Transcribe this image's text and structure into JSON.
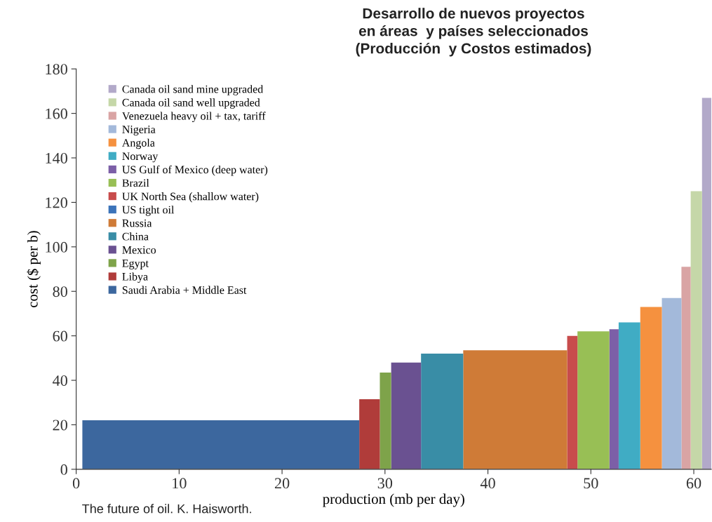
{
  "chart_data": {
    "type": "area",
    "title": "Desarrollo de nuevos proyectos\nen áreas  y países seleccionados\n(Producción  y Costos estimados)",
    "xlabel": "production (mb per day)",
    "ylabel": "cost ($ per b)",
    "xlim": [
      0,
      61.7
    ],
    "xticks": [
      0,
      10,
      20,
      30,
      40,
      50,
      60
    ],
    "ylim": [
      0,
      180
    ],
    "yticks": [
      0,
      20,
      40,
      60,
      80,
      100,
      120,
      140,
      160,
      180
    ],
    "grid": false,
    "legend": "top left",
    "annotations": [
      "The future of oil. K. Haisworth."
    ],
    "series": [
      {
        "name": "Canada oil sand mine upgraded",
        "color": "#b2a9c9",
        "x": [
          60.8,
          61.7
        ],
        "values": [
          167,
          167
        ]
      },
      {
        "name": "Canada oil sand well upgraded",
        "color": "#c5d7a8",
        "x": [
          59.7,
          60.8
        ],
        "values": [
          125,
          125
        ]
      },
      {
        "name": "Venezuela heavy oil + tax, tariff",
        "color": "#d9a4a4",
        "x": [
          58.8,
          59.7
        ],
        "values": [
          91,
          91
        ]
      },
      {
        "name": "Nigeria",
        "color": "#a3b9da",
        "x": [
          56.9,
          58.8
        ],
        "values": [
          77,
          77
        ]
      },
      {
        "name": "Angola",
        "color": "#f5913f",
        "x": [
          54.8,
          56.9
        ],
        "values": [
          73,
          73
        ]
      },
      {
        "name": "Norway",
        "color": "#40acc4",
        "x": [
          52.7,
          54.8
        ],
        "values": [
          66,
          66
        ]
      },
      {
        "name": "US Gulf of Mexico (deep water)",
        "color": "#7c5fa7",
        "x": [
          51.8,
          52.7
        ],
        "values": [
          63,
          63
        ]
      },
      {
        "name": "Brazil",
        "color": "#98bf55",
        "x": [
          48.7,
          51.8
        ],
        "values": [
          62,
          62
        ]
      },
      {
        "name": "UK North Sea (shallow water)",
        "color": "#c84c4c",
        "x": [
          47.7,
          48.7
        ],
        "values": [
          60,
          60
        ]
      },
      {
        "name": "US tight oil",
        "color": "#3b73b9"
      },
      {
        "name": "Russia",
        "color": "#cf7b37",
        "x": [
          37.6,
          47.7
        ],
        "values": [
          53.5,
          53.5
        ]
      },
      {
        "name": "China",
        "color": "#398da6",
        "x": [
          33.5,
          37.6
        ],
        "values": [
          52,
          52
        ]
      },
      {
        "name": "Mexico",
        "color": "#6a5191",
        "x": [
          30.6,
          33.5
        ],
        "values": [
          48,
          48
        ]
      },
      {
        "name": "Egypt",
        "color": "#7ea34a",
        "x": [
          29.5,
          30.6
        ],
        "values": [
          43.5,
          43.5
        ]
      },
      {
        "name": "Libya",
        "color": "#b03c3a",
        "x": [
          27.5,
          29.5
        ],
        "values": [
          31.5,
          31.5
        ]
      },
      {
        "name": "Saudi Arabia + Middle East",
        "color": "#3c679e",
        "x": [
          0.6,
          27.5
        ],
        "values": [
          22,
          22
        ]
      }
    ]
  }
}
